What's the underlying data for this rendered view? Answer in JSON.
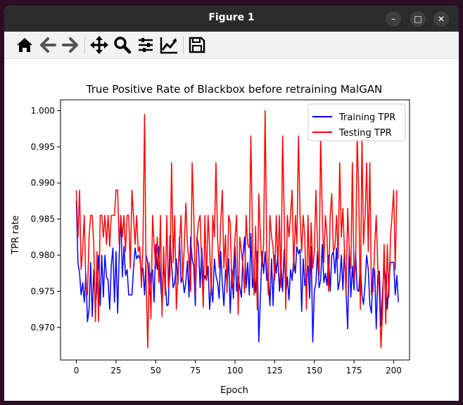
{
  "window": {
    "title": "Figure 1"
  },
  "window_controls": {
    "minimize": "–",
    "maximize": "□",
    "close": "✕"
  },
  "toolbar": {
    "buttons": [
      {
        "name": "home",
        "icon": "home-icon"
      },
      {
        "name": "back",
        "icon": "arrow-left-icon"
      },
      {
        "name": "forward",
        "icon": "arrow-right-icon"
      },
      {
        "name": "pan",
        "icon": "move-icon"
      },
      {
        "name": "zoom",
        "icon": "magnifier-icon"
      },
      {
        "name": "subplots",
        "icon": "sliders-icon"
      },
      {
        "name": "customize",
        "icon": "chart-line-icon"
      },
      {
        "name": "save",
        "icon": "floppy-disk-icon"
      }
    ]
  },
  "chart_data": {
    "type": "line",
    "title": "True Positive Rate of Blackbox before retraining MalGAN",
    "xlabel": "Epoch",
    "ylabel": "TPR rate",
    "xlim": [
      -10,
      210
    ],
    "ylim": [
      0.9655,
      1.0015
    ],
    "xticks": [
      "0",
      "25",
      "50",
      "75",
      "100",
      "125",
      "150",
      "175",
      "200"
    ],
    "yticks": [
      "0.970",
      "0.975",
      "0.980",
      "0.985",
      "0.990",
      "0.995",
      "1.000"
    ],
    "legend_position": "top-right",
    "grid": false,
    "series": [
      {
        "name": "Training TPR",
        "color": "#0000ff",
        "values": [
          0.9875,
          0.979,
          0.9775,
          0.9745,
          0.9762,
          0.9735,
          0.9775,
          0.9708,
          0.9725,
          0.979,
          0.9715,
          0.978,
          0.9725,
          0.976,
          0.98,
          0.973,
          0.98,
          0.9742,
          0.98,
          0.977,
          0.9765,
          0.9725,
          0.9785,
          0.981,
          0.9735,
          0.9805,
          0.972,
          0.98,
          0.9855,
          0.977,
          0.9812,
          0.9772,
          0.978,
          0.9745,
          0.9745,
          0.9745,
          0.978,
          0.981,
          0.9795,
          0.98,
          0.9795,
          0.9775,
          0.9782,
          0.9745,
          0.98,
          0.979,
          0.9745,
          0.9775,
          0.978,
          0.9735,
          0.9815,
          0.978,
          0.9812,
          0.9765,
          0.9732,
          0.9785,
          0.9765,
          0.973,
          0.9732,
          0.9827,
          0.9788,
          0.9755,
          0.9762,
          0.9795,
          0.976,
          0.9825,
          0.9762,
          0.977,
          0.9748,
          0.9762,
          0.9792,
          0.9742,
          0.9825,
          0.9795,
          0.9785,
          0.973,
          0.9825,
          0.9812,
          0.9755,
          0.981,
          0.9762,
          0.9772,
          0.9765,
          0.9785,
          0.9725,
          0.976,
          0.9735,
          0.9795,
          0.9772,
          0.9762,
          0.974,
          0.9805,
          0.976,
          0.973,
          0.978,
          0.976,
          0.9795,
          0.972,
          0.978,
          0.974,
          0.9812,
          0.975,
          0.977,
          0.9755,
          0.9742,
          0.98,
          0.9825,
          0.9755,
          0.979,
          0.9745,
          0.983,
          0.9755,
          0.9775,
          0.9748,
          0.9805,
          0.968,
          0.9742,
          0.9805,
          0.9775,
          0.9805,
          0.9765,
          0.9772,
          0.973,
          0.9795,
          0.973,
          0.98,
          0.9775,
          0.9805,
          0.975,
          0.9788,
          0.975,
          0.9808,
          0.9745,
          0.977,
          0.9738,
          0.978,
          0.9765,
          0.9795,
          0.9775,
          0.9812,
          0.9802,
          0.9808,
          0.9722,
          0.9795,
          0.9758,
          0.9772,
          0.9785,
          0.974,
          0.9812,
          0.968,
          0.975,
          0.9762,
          0.9805,
          0.9755,
          0.9765,
          0.9815,
          0.9762,
          0.9775,
          0.9758,
          0.98,
          0.975,
          0.98,
          0.9805,
          0.9775,
          0.981,
          0.9752,
          0.9765,
          0.98,
          0.9752,
          0.9808,
          0.975,
          0.9698,
          0.9812,
          0.9742,
          0.9785,
          0.9752,
          0.9805,
          0.9752,
          0.975,
          0.9788,
          0.9745,
          0.9732,
          0.9762,
          0.98,
          0.978,
          0.9732,
          0.972,
          0.9782,
          0.978,
          0.9698,
          0.9772,
          0.9778,
          0.9702,
          0.975,
          0.9785,
          0.977,
          0.9725,
          0.9762,
          0.979,
          0.979,
          0.979,
          0.9745,
          0.9772,
          0.9735
        ]
      },
      {
        "name": "Testing TPR",
        "color": "#ff0000",
        "values": [
          0.989,
          0.9825,
          0.989,
          0.978,
          0.981,
          0.9855,
          0.9755,
          0.9745,
          0.9825,
          0.9855,
          0.9855,
          0.9815,
          0.9708,
          0.9805,
          0.9708,
          0.9855,
          0.9855,
          0.9825,
          0.9855,
          0.9815,
          0.9855,
          0.9812,
          0.9855,
          0.9855,
          0.9855,
          0.989,
          0.989,
          0.9815,
          0.9855,
          0.9825,
          0.9855,
          0.9805,
          0.9855,
          0.9855,
          0.9782,
          0.989,
          0.9855,
          0.9815,
          0.9855,
          0.9805,
          0.9812,
          0.9755,
          0.9815,
          0.9995,
          0.9762,
          0.9672,
          0.979,
          0.9712,
          0.9855,
          0.9815,
          0.9782,
          0.9825,
          0.9762,
          0.9855,
          0.9715,
          0.9812,
          0.9745,
          0.9855,
          0.9755,
          0.9772,
          0.9928,
          0.979,
          0.9855,
          0.9725,
          0.9772,
          0.9815,
          0.9855,
          0.9765,
          0.9812,
          0.9872,
          0.9815,
          0.979,
          0.975,
          0.9928,
          0.9855,
          0.9745,
          0.9822,
          0.9845,
          0.9855,
          0.9785,
          0.9728,
          0.9855,
          0.9765,
          0.9855,
          0.9812,
          0.9745,
          0.9855,
          0.9825,
          0.9928,
          0.9825,
          0.9782,
          0.9845,
          0.989,
          0.9782,
          0.9828,
          0.9748,
          0.9855,
          0.9845,
          0.9755,
          0.9782,
          0.9825,
          0.9855,
          0.9718,
          0.9825,
          0.9805,
          0.9785,
          0.9748,
          0.9855,
          0.9815,
          0.981,
          0.9965,
          0.9825,
          0.9745,
          0.984,
          0.9725,
          0.9885,
          0.9825,
          0.9785,
          0.9815,
          1.0,
          0.9805,
          0.9745,
          0.9855,
          0.9825,
          0.9812,
          0.9765,
          0.9855,
          0.9785,
          0.9855,
          0.9755,
          0.9965,
          0.9855,
          0.9725,
          0.9855,
          0.9825,
          0.9855,
          0.989,
          0.9778,
          0.9855,
          0.9815,
          0.9965,
          0.9855,
          0.9805,
          0.9855,
          0.9825,
          0.9725,
          0.9855,
          0.9765,
          0.9845,
          0.9782,
          0.9805,
          0.989,
          0.9815,
          0.9772,
          0.9965,
          0.9855,
          0.979,
          0.9855,
          0.9825,
          0.975,
          0.9855,
          0.9885,
          0.9805,
          0.9812,
          0.9855,
          0.9795,
          0.9928,
          0.9825,
          0.9865,
          0.9805,
          0.9745,
          0.9865,
          0.9805,
          0.9782,
          0.9928,
          0.9765,
          0.9785,
          0.9965,
          0.9885,
          0.9725,
          0.9965,
          0.9815,
          0.9855,
          0.9928,
          0.9805,
          0.9928,
          0.9745,
          0.975,
          0.981,
          0.9855,
          0.9785,
          0.9745,
          0.9672,
          0.9725,
          0.9815,
          0.9705,
          0.9815,
          0.9742,
          0.9825,
          0.9855,
          0.989,
          0.978,
          0.989
        ]
      }
    ]
  }
}
